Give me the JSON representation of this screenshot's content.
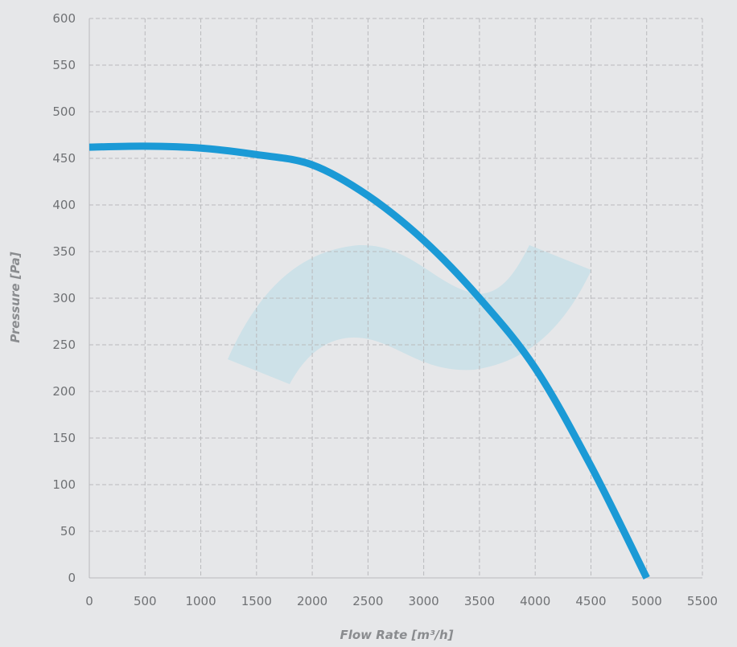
{
  "chart_data": {
    "type": "line",
    "xlabel": "Flow Rate [m³/h]",
    "ylabel": "Pressure [Pa]",
    "xlim": [
      0,
      5500
    ],
    "ylim": [
      0,
      600
    ],
    "x_ticks": [
      "0",
      "500",
      "1000",
      "1500",
      "2000",
      "2500",
      "3000",
      "3500",
      "4000",
      "4500",
      "5000",
      "5500"
    ],
    "y_ticks": [
      "0",
      "50",
      "100",
      "150",
      "200",
      "250",
      "300",
      "350",
      "400",
      "450",
      "500",
      "550",
      "600"
    ],
    "grid": true,
    "colors": {
      "line": "#1b9ad6",
      "background": "#e6e7e9",
      "grid": "#b9babd",
      "watermark": "#cde1e8"
    },
    "watermark_icon": "wave-watermark-icon",
    "series": [
      {
        "x": [
          0,
          500,
          1000,
          1500,
          2000,
          2500,
          3000,
          3500,
          4000,
          4500,
          5000
        ],
        "y": [
          462,
          463,
          461,
          454,
          443,
          410,
          362,
          300,
          225,
          120,
          0
        ]
      }
    ]
  }
}
